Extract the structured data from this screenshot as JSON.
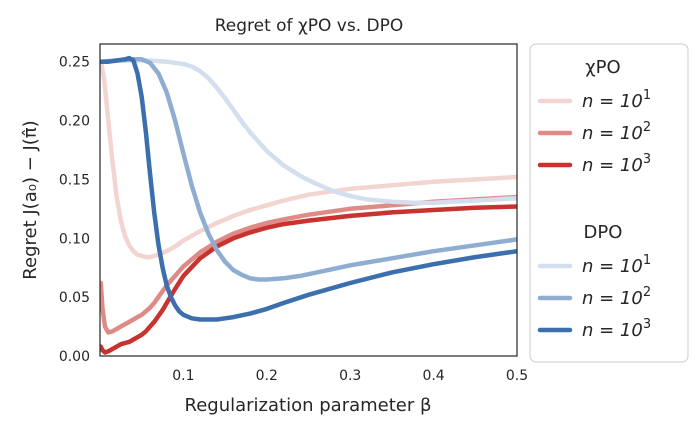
{
  "chart_data": {
    "type": "line",
    "title": "Regret of χPO vs. DPO",
    "xlabel": "Regularization parameter β",
    "ylabel": "Regret  J(a₀) − J(π̂)",
    "xlim": [
      0.0,
      0.5
    ],
    "ylim": [
      0.0,
      0.265
    ],
    "xticks": [
      0.1,
      0.2,
      0.3,
      0.4,
      0.5
    ],
    "xtick_labels": [
      "0.1",
      "0.2",
      "0.3",
      "0.4",
      "0.5"
    ],
    "yticks": [
      0.0,
      0.05,
      0.1,
      0.15,
      0.2,
      0.25
    ],
    "ytick_labels": [
      "0.00",
      "0.05",
      "0.10",
      "0.15",
      "0.20",
      "0.25"
    ],
    "grid": false,
    "legend": {
      "placement": "outside-right",
      "groups": [
        {
          "title": "χPO",
          "entries": [
            "n = 10",
            "n = 10",
            "n = 10"
          ],
          "exponents": [
            "1",
            "2",
            "3"
          ]
        },
        {
          "title": "DPO",
          "entries": [
            "n = 10",
            "n = 10",
            "n = 10"
          ],
          "exponents": [
            "1",
            "2",
            "3"
          ]
        }
      ]
    },
    "series": [
      {
        "group": "χPO",
        "label": "n = 10^1",
        "color": "#f2d4d0",
        "x": [
          0.001,
          0.005,
          0.01,
          0.015,
          0.02,
          0.025,
          0.03,
          0.035,
          0.04,
          0.045,
          0.05,
          0.055,
          0.06,
          0.065,
          0.07,
          0.08,
          0.09,
          0.1,
          0.12,
          0.14,
          0.16,
          0.18,
          0.2,
          0.22,
          0.25,
          0.3,
          0.35,
          0.4,
          0.45,
          0.5
        ],
        "y": [
          0.25,
          0.235,
          0.2,
          0.165,
          0.135,
          0.115,
          0.102,
          0.094,
          0.089,
          0.086,
          0.085,
          0.084,
          0.084,
          0.085,
          0.086,
          0.089,
          0.093,
          0.098,
          0.106,
          0.113,
          0.119,
          0.124,
          0.128,
          0.132,
          0.137,
          0.142,
          0.145,
          0.148,
          0.15,
          0.152
        ]
      },
      {
        "group": "χPO",
        "label": "n = 10^2",
        "color": "#e08a85",
        "x": [
          0.001,
          0.003,
          0.006,
          0.01,
          0.015,
          0.02,
          0.025,
          0.03,
          0.035,
          0.04,
          0.045,
          0.05,
          0.055,
          0.06,
          0.065,
          0.07,
          0.075,
          0.08,
          0.09,
          0.1,
          0.12,
          0.14,
          0.16,
          0.18,
          0.2,
          0.22,
          0.25,
          0.3,
          0.35,
          0.4,
          0.45,
          0.5
        ],
        "y": [
          0.062,
          0.04,
          0.025,
          0.02,
          0.021,
          0.023,
          0.025,
          0.027,
          0.029,
          0.031,
          0.033,
          0.035,
          0.038,
          0.041,
          0.045,
          0.05,
          0.055,
          0.06,
          0.068,
          0.076,
          0.088,
          0.097,
          0.104,
          0.109,
          0.113,
          0.116,
          0.12,
          0.125,
          0.128,
          0.131,
          0.133,
          0.135
        ]
      },
      {
        "group": "χPO",
        "label": "n = 10^3",
        "color": "#c8322f",
        "x": [
          0.001,
          0.003,
          0.006,
          0.01,
          0.015,
          0.02,
          0.025,
          0.03,
          0.035,
          0.04,
          0.045,
          0.05,
          0.055,
          0.06,
          0.065,
          0.07,
          0.075,
          0.08,
          0.09,
          0.1,
          0.12,
          0.14,
          0.16,
          0.18,
          0.2,
          0.22,
          0.25,
          0.3,
          0.35,
          0.4,
          0.45,
          0.5
        ],
        "y": [
          0.008,
          0.005,
          0.003,
          0.004,
          0.006,
          0.008,
          0.01,
          0.011,
          0.012,
          0.014,
          0.016,
          0.018,
          0.021,
          0.025,
          0.029,
          0.034,
          0.039,
          0.045,
          0.057,
          0.068,
          0.083,
          0.093,
          0.1,
          0.105,
          0.109,
          0.112,
          0.115,
          0.119,
          0.122,
          0.124,
          0.126,
          0.127
        ]
      },
      {
        "group": "DPO",
        "label": "n = 10^1",
        "color": "#d3dfef",
        "x": [
          0.001,
          0.02,
          0.04,
          0.06,
          0.08,
          0.1,
          0.11,
          0.12,
          0.13,
          0.14,
          0.15,
          0.16,
          0.17,
          0.18,
          0.19,
          0.2,
          0.22,
          0.24,
          0.26,
          0.28,
          0.3,
          0.32,
          0.35,
          0.38,
          0.4,
          0.42,
          0.45,
          0.5
        ],
        "y": [
          0.25,
          0.251,
          0.251,
          0.251,
          0.25,
          0.248,
          0.246,
          0.242,
          0.236,
          0.228,
          0.219,
          0.209,
          0.199,
          0.19,
          0.182,
          0.174,
          0.162,
          0.153,
          0.146,
          0.14,
          0.136,
          0.133,
          0.131,
          0.13,
          0.13,
          0.131,
          0.132,
          0.134
        ]
      },
      {
        "group": "DPO",
        "label": "n = 10^2",
        "color": "#8fadd1",
        "x": [
          0.001,
          0.02,
          0.04,
          0.05,
          0.06,
          0.07,
          0.08,
          0.09,
          0.1,
          0.11,
          0.12,
          0.13,
          0.14,
          0.15,
          0.16,
          0.17,
          0.18,
          0.19,
          0.2,
          0.22,
          0.24,
          0.26,
          0.28,
          0.3,
          0.35,
          0.4,
          0.45,
          0.5
        ],
        "y": [
          0.25,
          0.251,
          0.252,
          0.252,
          0.249,
          0.24,
          0.224,
          0.2,
          0.172,
          0.145,
          0.122,
          0.104,
          0.09,
          0.08,
          0.073,
          0.069,
          0.066,
          0.065,
          0.065,
          0.066,
          0.068,
          0.071,
          0.074,
          0.077,
          0.083,
          0.089,
          0.094,
          0.099
        ]
      },
      {
        "group": "DPO",
        "label": "n = 10^3",
        "color": "#3b6fad",
        "x": [
          0.001,
          0.01,
          0.02,
          0.03,
          0.035,
          0.04,
          0.045,
          0.05,
          0.055,
          0.06,
          0.065,
          0.07,
          0.075,
          0.08,
          0.085,
          0.09,
          0.095,
          0.1,
          0.11,
          0.12,
          0.13,
          0.14,
          0.15,
          0.16,
          0.18,
          0.2,
          0.22,
          0.25,
          0.3,
          0.35,
          0.4,
          0.45,
          0.5
        ],
        "y": [
          0.25,
          0.25,
          0.251,
          0.252,
          0.253,
          0.251,
          0.24,
          0.22,
          0.19,
          0.155,
          0.122,
          0.095,
          0.075,
          0.06,
          0.05,
          0.043,
          0.038,
          0.035,
          0.032,
          0.031,
          0.031,
          0.031,
          0.032,
          0.033,
          0.036,
          0.04,
          0.045,
          0.052,
          0.062,
          0.071,
          0.078,
          0.084,
          0.089
        ]
      }
    ]
  }
}
